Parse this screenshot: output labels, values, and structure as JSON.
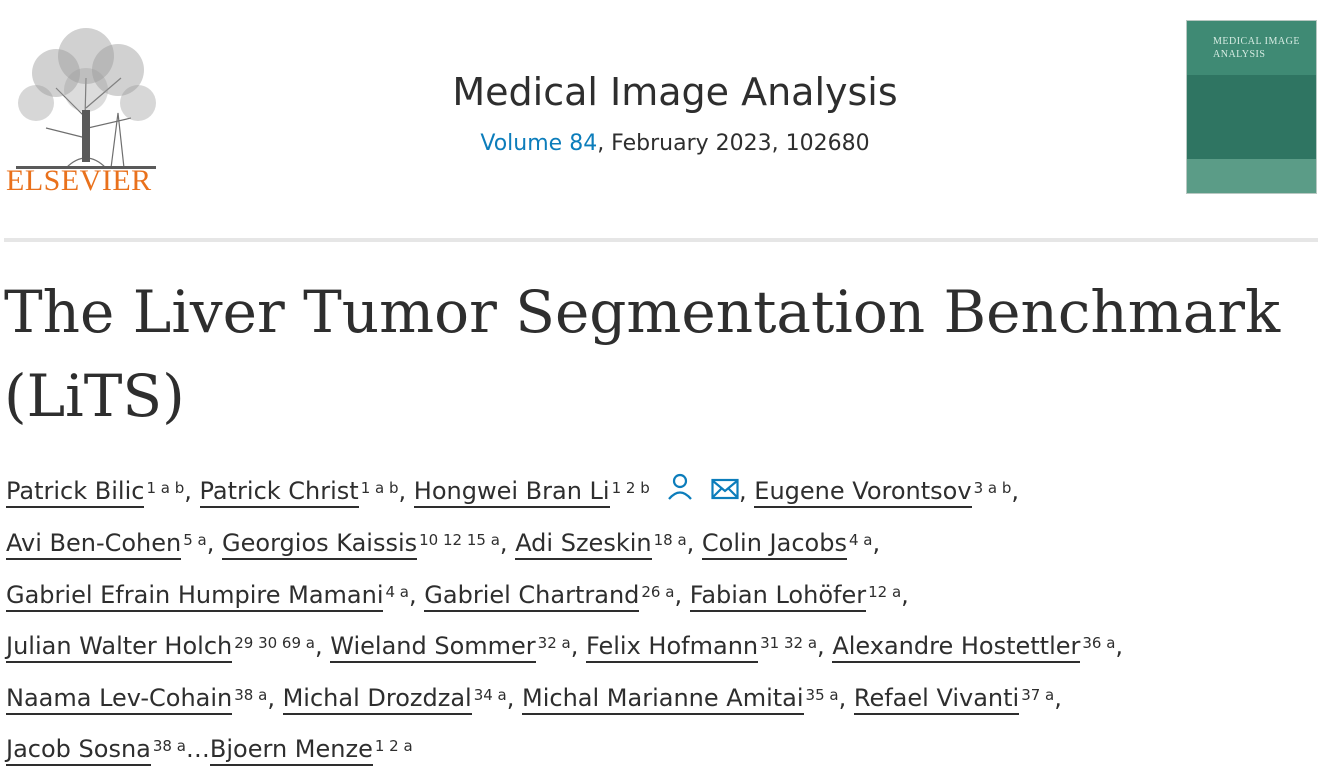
{
  "header": {
    "publisher": "ELSEVIER",
    "journal_title": "Medical Image Analysis",
    "volume_label": "Volume 84",
    "issue_rest": ", February 2023, 102680",
    "cover_title": "MEDICAL IMAGE ANALYSIS"
  },
  "colors": {
    "brand_orange": "#e9711c",
    "link_blue": "#0c7dbb",
    "cover_green": "#3f8a74"
  },
  "article": {
    "title_line1": "The Liver Tumor Segmentation Benchmark",
    "title_line2": "(LiTS)"
  },
  "authors": [
    {
      "name": "Patrick Bilic",
      "aff": "1 a b"
    },
    {
      "name": "Patrick Christ",
      "aff": "1 a b"
    },
    {
      "name": "Hongwei Bran Li",
      "aff": "1 2 b"
    },
    {
      "name": "Eugene Vorontsov",
      "aff": "3 a b"
    },
    {
      "name": "Avi Ben-Cohen",
      "aff": "5 a"
    },
    {
      "name": "Georgios Kaissis",
      "aff": "10 12 15 a"
    },
    {
      "name": "Adi Szeskin",
      "aff": "18 a"
    },
    {
      "name": "Colin Jacobs",
      "aff": "4 a"
    },
    {
      "name": "Gabriel Efrain Humpire Mamani",
      "aff": "4 a"
    },
    {
      "name": "Gabriel Chartrand",
      "aff": "26 a"
    },
    {
      "name": "Fabian Lohöfer",
      "aff": "12 a"
    },
    {
      "name": "Julian Walter Holch",
      "aff": "29 30 69 a"
    },
    {
      "name": "Wieland Sommer",
      "aff": "32 a"
    },
    {
      "name": "Felix Hofmann",
      "aff": "31 32 a"
    },
    {
      "name": "Alexandre Hostettler",
      "aff": "36 a"
    },
    {
      "name": "Naama Lev-Cohain",
      "aff": "38 a"
    },
    {
      "name": "Michal Drozdzal",
      "aff": "34 a"
    },
    {
      "name": "Michal Marianne Amitai",
      "aff": "35 a"
    },
    {
      "name": "Refael Vivanti",
      "aff": "37 a"
    },
    {
      "name": "Jacob Sosna",
      "aff": "38 a"
    },
    {
      "name": "Bjoern Menze",
      "aff": "1 2 a"
    }
  ],
  "punct": {
    "comma": ",",
    "ellipsis": "…"
  },
  "icons": {
    "profile": "person-icon",
    "email": "envelope-icon"
  }
}
